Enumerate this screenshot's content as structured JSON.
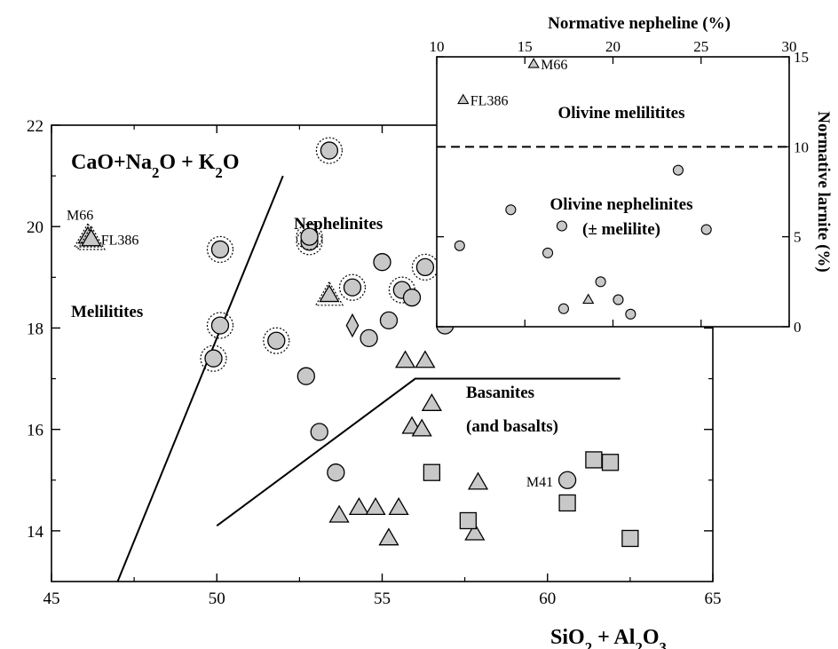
{
  "chart_data": [
    {
      "type": "scatter",
      "title": "CaO+Na2O + K2O",
      "xlabel": "SiO2 + Al2O3",
      "ylabel": "",
      "xlim": [
        45,
        65
      ],
      "ylim": [
        13,
        22
      ],
      "x_ticks": [
        "45",
        "50",
        "55",
        "60",
        "65"
      ],
      "y_ticks": [
        "14",
        "16",
        "18",
        "20",
        "22"
      ],
      "grid": false,
      "legend": "none",
      "fields": [
        "Melilitites",
        "Nephelinites",
        "Basanites",
        "(and basalts)"
      ],
      "boundaries": [
        {
          "points": [
            [
              47.0,
              13.0
            ],
            [
              52.0,
              21.0
            ]
          ]
        },
        {
          "points": [
            [
              50.0,
              14.1
            ],
            [
              56.0,
              17.0
            ],
            [
              62.2,
              17.0
            ]
          ]
        }
      ],
      "series": [
        {
          "marker": "circle",
          "points": [
            {
              "x": 49.9,
              "y": 17.4,
              "ring": true
            },
            {
              "x": 50.1,
              "y": 18.05,
              "ring": true
            },
            {
              "x": 50.1,
              "y": 19.55,
              "ring": true
            },
            {
              "x": 51.8,
              "y": 17.75,
              "ring": true
            },
            {
              "x": 52.8,
              "y": 19.7,
              "ring": true
            },
            {
              "x": 52.8,
              "y": 19.8,
              "ring": true
            },
            {
              "x": 53.4,
              "y": 21.5,
              "ring": true
            },
            {
              "x": 54.1,
              "y": 18.8,
              "ring": true
            },
            {
              "x": 55.6,
              "y": 18.75,
              "ring": true
            },
            {
              "x": 56.3,
              "y": 19.2,
              "ring": true
            },
            {
              "x": 52.7,
              "y": 17.05,
              "ring": false
            },
            {
              "x": 53.1,
              "y": 15.95,
              "ring": false
            },
            {
              "x": 53.6,
              "y": 15.15,
              "ring": false
            },
            {
              "x": 54.6,
              "y": 17.8,
              "ring": false
            },
            {
              "x": 55.0,
              "y": 19.3,
              "ring": false
            },
            {
              "x": 55.2,
              "y": 18.15,
              "ring": false
            },
            {
              "x": 55.9,
              "y": 18.6,
              "ring": false
            },
            {
              "x": 56.9,
              "y": 18.05,
              "ring": false
            },
            {
              "x": 57.3,
              "y": 18.2,
              "ring": false
            },
            {
              "x": 60.6,
              "y": 15.0,
              "ring": false,
              "label": "M41"
            }
          ]
        },
        {
          "marker": "triangle",
          "points": [
            {
              "x": 46.1,
              "y": 19.8,
              "ring": true,
              "label": "M66"
            },
            {
              "x": 46.2,
              "y": 19.75,
              "ring": true,
              "label": "FL386"
            },
            {
              "x": 53.4,
              "y": 18.65,
              "ring": true
            },
            {
              "x": 53.7,
              "y": 14.3,
              "ring": false
            },
            {
              "x": 54.3,
              "y": 14.45,
              "ring": false
            },
            {
              "x": 54.8,
              "y": 14.45,
              "ring": false
            },
            {
              "x": 55.2,
              "y": 13.85,
              "ring": false
            },
            {
              "x": 55.5,
              "y": 14.45,
              "ring": false
            },
            {
              "x": 55.7,
              "y": 17.35,
              "ring": false
            },
            {
              "x": 55.9,
              "y": 16.05,
              "ring": false
            },
            {
              "x": 56.2,
              "y": 16.0,
              "ring": false
            },
            {
              "x": 56.3,
              "y": 17.35,
              "ring": false
            },
            {
              "x": 56.5,
              "y": 16.5,
              "ring": false
            },
            {
              "x": 57.8,
              "y": 13.95,
              "ring": false
            },
            {
              "x": 57.9,
              "y": 14.95,
              "ring": false
            }
          ]
        },
        {
          "marker": "square",
          "points": [
            {
              "x": 56.5,
              "y": 15.15,
              "ring": false
            },
            {
              "x": 57.6,
              "y": 14.2,
              "ring": false
            },
            {
              "x": 60.6,
              "y": 14.55,
              "ring": false
            },
            {
              "x": 61.4,
              "y": 15.4,
              "ring": false
            },
            {
              "x": 61.9,
              "y": 15.35,
              "ring": false
            },
            {
              "x": 62.5,
              "y": 13.85,
              "ring": false
            }
          ]
        },
        {
          "marker": "diamond",
          "points": [
            {
              "x": 54.1,
              "y": 18.05,
              "ring": false
            }
          ]
        }
      ]
    },
    {
      "type": "scatter",
      "title": "",
      "xlabel": "Normative nepheline (%)",
      "ylabel": "Normative larnite (%)",
      "xlim": [
        10,
        30
      ],
      "ylim": [
        0,
        15
      ],
      "x_ticks": [
        "10",
        "15",
        "20",
        "25",
        "30"
      ],
      "y_ticks": [
        "0",
        "5",
        "10",
        "15"
      ],
      "grid": false,
      "legend": "none",
      "fields": [
        "Olivine melilitites",
        "Olivine nephelinites",
        "(± melilite)"
      ],
      "divider_y": 10,
      "series": [
        {
          "marker": "circle",
          "points": [
            {
              "x": 11.3,
              "y": 4.5
            },
            {
              "x": 14.2,
              "y": 6.5
            },
            {
              "x": 16.3,
              "y": 4.1
            },
            {
              "x": 17.1,
              "y": 5.6
            },
            {
              "x": 17.2,
              "y": 1.0
            },
            {
              "x": 19.3,
              "y": 2.5
            },
            {
              "x": 20.3,
              "y": 1.5
            },
            {
              "x": 21.0,
              "y": 0.7
            },
            {
              "x": 23.7,
              "y": 8.7
            },
            {
              "x": 25.3,
              "y": 5.4
            }
          ]
        },
        {
          "marker": "triangle",
          "points": [
            {
              "x": 15.5,
              "y": 14.6,
              "label": "M66"
            },
            {
              "x": 11.5,
              "y": 12.6,
              "label": "FL386"
            },
            {
              "x": 18.6,
              "y": 1.5
            }
          ]
        }
      ]
    }
  ]
}
